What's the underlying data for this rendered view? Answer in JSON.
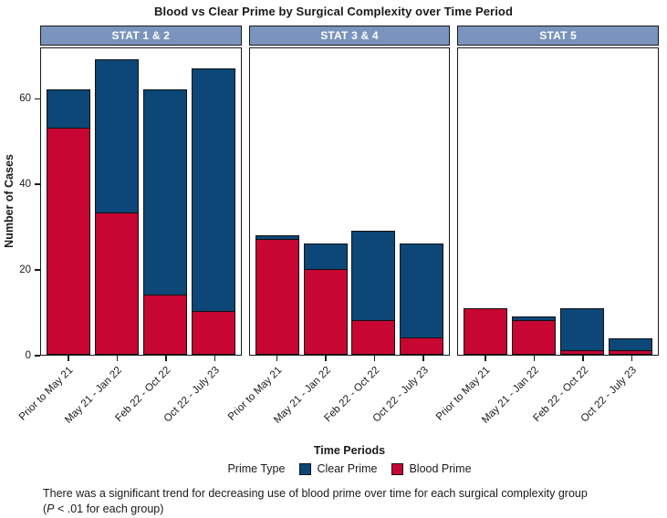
{
  "title": "Blood vs Clear Prime by Surgical Complexity over Time Period",
  "y_axis": {
    "label": "Number of Cases"
  },
  "x_axis": {
    "label": "Time Periods"
  },
  "legend": {
    "title": "Prime Type",
    "items": [
      {
        "label": "Clear Prime",
        "color": "#0C4777"
      },
      {
        "label": "Blood Prime",
        "color": "#C70633"
      }
    ]
  },
  "caption": {
    "line1": "There was a significant trend for decreasing use of blood prime over time for each surgical complexity group",
    "line2_open": "(",
    "line2_italic": "P",
    "line2_rest": " < .01 for each group)"
  },
  "colors": {
    "clear_prime": "#0C4777",
    "blood_prime": "#C70633",
    "panel_header_bg": "#7A94BD",
    "panel_header_text": "#FFFFFF",
    "border": "#1A1A1A"
  },
  "chart_data": {
    "type": "bar",
    "stacked": true,
    "title": "Blood vs Clear Prime by Surgical Complexity over Time Period",
    "xlabel": "Time Periods",
    "ylabel": "Number of Cases",
    "ylim": [
      0,
      72
    ],
    "yticks": [
      0,
      20,
      40,
      60
    ],
    "grid": false,
    "legend_position": "bottom",
    "facets": [
      "STAT 1 & 2",
      "STAT 3 & 4",
      "STAT 5"
    ],
    "categories": [
      "Prior to May 21",
      "May 21 - Jan 22",
      "Feb 22 - Oct 22",
      "Oct 22 - July 23"
    ],
    "panels": [
      {
        "facet": "STAT 1 & 2",
        "series": [
          {
            "name": "Blood Prime",
            "values": [
              53,
              33,
              14,
              10
            ]
          },
          {
            "name": "Clear Prime",
            "values": [
              9,
              36,
              48,
              57
            ]
          }
        ]
      },
      {
        "facet": "STAT 3 & 4",
        "series": [
          {
            "name": "Blood Prime",
            "values": [
              27,
              20,
              8,
              4
            ]
          },
          {
            "name": "Clear Prime",
            "values": [
              1,
              6,
              21,
              22
            ]
          }
        ]
      },
      {
        "facet": "STAT 5",
        "series": [
          {
            "name": "Blood Prime",
            "values": [
              11,
              8,
              1,
              1
            ]
          },
          {
            "name": "Clear Prime",
            "values": [
              0,
              1,
              10,
              3
            ]
          }
        ]
      }
    ]
  }
}
